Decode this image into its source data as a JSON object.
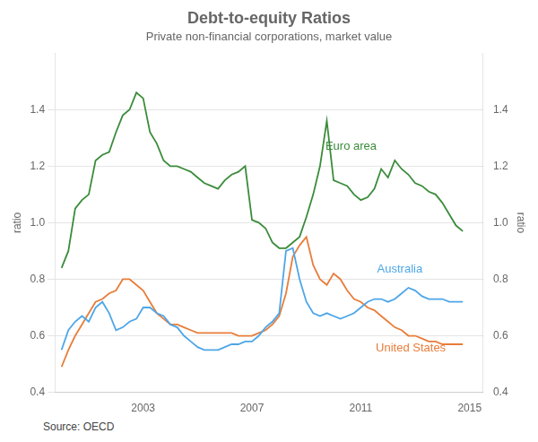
{
  "chart_data": {
    "type": "line",
    "title": "Debt-to-equity Ratios",
    "subtitle": "Private non-financial corporations, market value",
    "source": "Source:   OECD",
    "ylabel": "ratio",
    "y2label": "ratio",
    "x": [
      2000.0,
      2000.25,
      2000.5,
      2000.75,
      2001.0,
      2001.25,
      2001.5,
      2001.75,
      2002.0,
      2002.25,
      2002.5,
      2002.75,
      2003.0,
      2003.25,
      2003.5,
      2003.75,
      2004.0,
      2004.25,
      2004.5,
      2004.75,
      2005.0,
      2005.25,
      2005.5,
      2005.75,
      2006.0,
      2006.25,
      2006.5,
      2006.75,
      2007.0,
      2007.25,
      2007.5,
      2007.75,
      2008.0,
      2008.25,
      2008.5,
      2008.75,
      2009.0,
      2009.25,
      2009.5,
      2009.75,
      2010.0,
      2010.25,
      2010.5,
      2010.75,
      2011.0,
      2011.25,
      2011.5,
      2011.75,
      2012.0,
      2012.25,
      2012.5,
      2012.75,
      2013.0,
      2013.25,
      2013.5,
      2013.75,
      2014.0,
      2014.25,
      2014.5,
      2014.75
    ],
    "series": [
      {
        "name": "Euro area",
        "color": "#3a8c3a",
        "values": [
          0.84,
          0.9,
          1.05,
          1.08,
          1.1,
          1.22,
          1.24,
          1.25,
          1.32,
          1.38,
          1.4,
          1.46,
          1.44,
          1.32,
          1.28,
          1.22,
          1.2,
          1.2,
          1.19,
          1.18,
          1.16,
          1.14,
          1.13,
          1.12,
          1.15,
          1.17,
          1.18,
          1.2,
          1.01,
          1.0,
          0.98,
          0.93,
          0.91,
          0.91,
          0.93,
          0.95,
          1.02,
          1.1,
          1.2,
          1.36,
          1.15,
          1.14,
          1.13,
          1.1,
          1.08,
          1.09,
          1.12,
          1.19,
          1.16,
          1.22,
          1.19,
          1.17,
          1.14,
          1.13,
          1.11,
          1.1,
          1.07,
          1.03,
          0.99,
          0.97
        ]
      },
      {
        "name": "Australia",
        "color": "#4da6e8",
        "values": [
          0.55,
          0.62,
          0.65,
          0.67,
          0.65,
          0.7,
          0.72,
          0.68,
          0.62,
          0.63,
          0.65,
          0.66,
          0.7,
          0.7,
          0.68,
          0.67,
          0.64,
          0.63,
          0.6,
          0.58,
          0.56,
          0.55,
          0.55,
          0.55,
          0.56,
          0.57,
          0.57,
          0.58,
          0.58,
          0.6,
          0.63,
          0.65,
          0.68,
          0.9,
          0.91,
          0.8,
          0.72,
          0.68,
          0.67,
          0.68,
          0.67,
          0.66,
          0.67,
          0.68,
          0.7,
          0.72,
          0.73,
          0.73,
          0.72,
          0.73,
          0.75,
          0.77,
          0.76,
          0.74,
          0.73,
          0.73,
          0.73,
          0.72,
          0.72,
          0.72
        ]
      },
      {
        "name": "United States",
        "color": "#e87d3a",
        "values": [
          0.49,
          0.55,
          0.6,
          0.64,
          0.68,
          0.72,
          0.73,
          0.75,
          0.76,
          0.8,
          0.8,
          0.78,
          0.76,
          0.72,
          0.68,
          0.66,
          0.64,
          0.64,
          0.63,
          0.62,
          0.61,
          0.61,
          0.61,
          0.61,
          0.61,
          0.61,
          0.6,
          0.6,
          0.6,
          0.61,
          0.62,
          0.64,
          0.67,
          0.75,
          0.88,
          0.92,
          0.95,
          0.85,
          0.8,
          0.78,
          0.82,
          0.8,
          0.76,
          0.73,
          0.72,
          0.7,
          0.69,
          0.67,
          0.65,
          0.63,
          0.62,
          0.6,
          0.6,
          0.59,
          0.58,
          0.58,
          0.57,
          0.57,
          0.57,
          0.57
        ]
      }
    ],
    "annotations": [
      {
        "text": "Euro area",
        "x": 2009.7,
        "y": 1.27,
        "color": "#3a8c3a"
      },
      {
        "text": "Australia",
        "x": 2011.6,
        "y": 0.835,
        "color": "#4da6e8"
      },
      {
        "text": "United States",
        "x": 2011.55,
        "y": 0.555,
        "color": "#e87d3a"
      }
    ],
    "xlim": [
      1999.75,
      2015.5
    ],
    "xticks": [
      2003,
      2007,
      2011,
      2015
    ],
    "ylim": [
      0.4,
      1.6
    ],
    "yticks": [
      0.4,
      0.6,
      0.8,
      {
        "value": 1.0,
        "label": "1.0"
      },
      1.2,
      1.4
    ],
    "y2lim": [
      0.4,
      1.6
    ],
    "y2ticks": [
      0.4,
      0.6,
      0.8,
      {
        "value": 1.0,
        "label": "1.0"
      },
      1.2,
      1.4
    ],
    "grid": true
  }
}
